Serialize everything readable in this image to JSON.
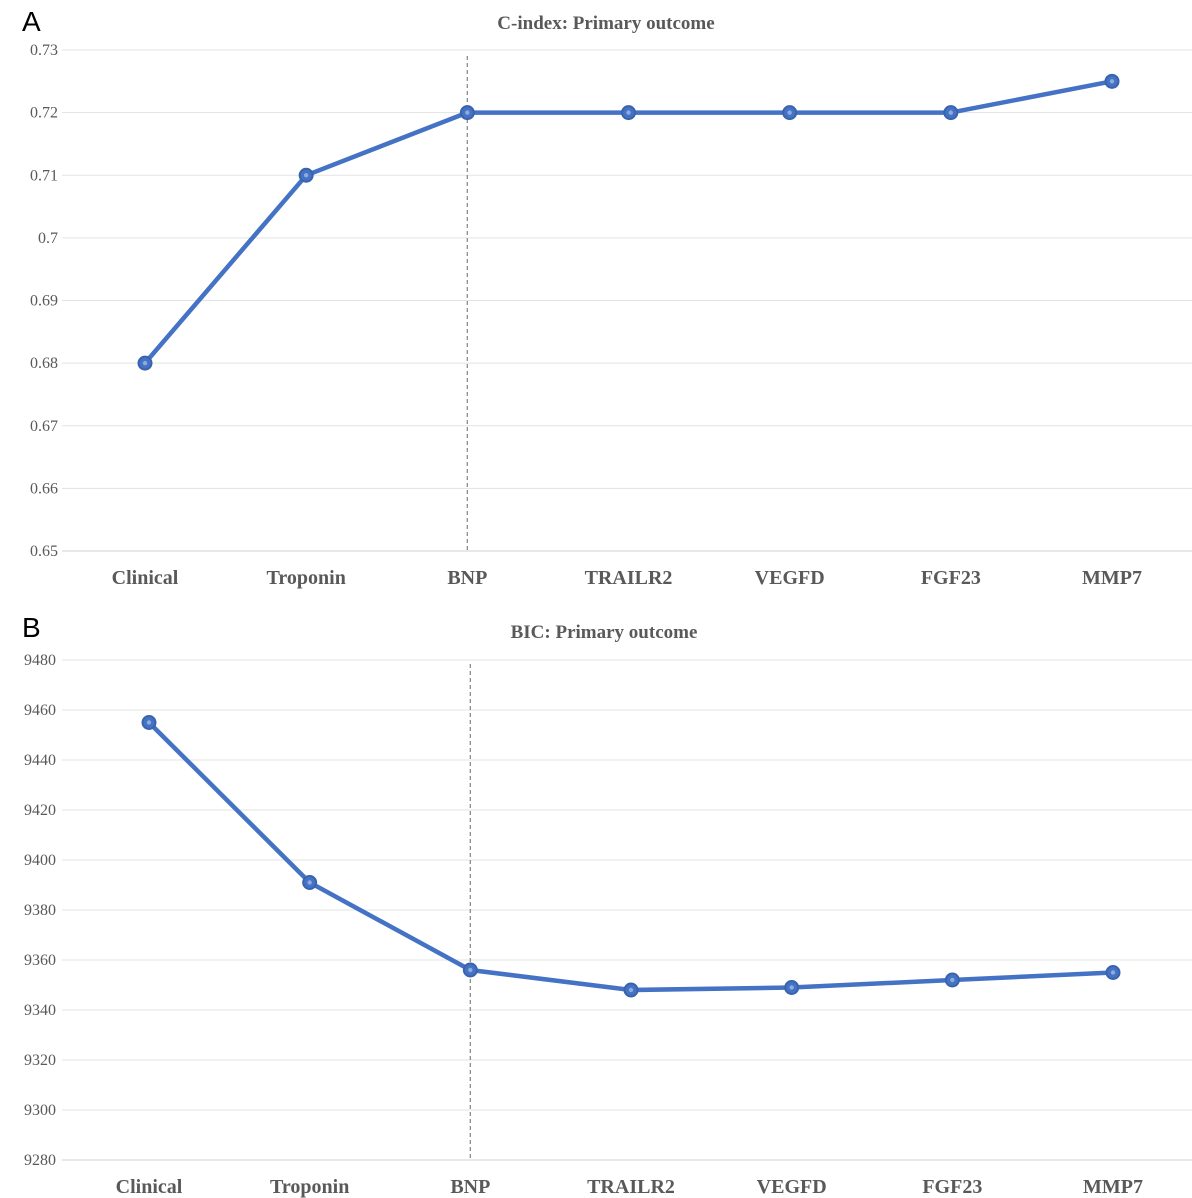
{
  "chart_data": [
    {
      "panel": "A",
      "type": "line",
      "title": "C-index: Primary outcome",
      "xlabel": "",
      "ylabel": "",
      "categories": [
        "Clinical",
        "Troponin",
        "BNP",
        "TRAILR2",
        "VEGFD",
        "FGF23",
        "MMP7"
      ],
      "values": [
        0.68,
        0.71,
        0.72,
        0.72,
        0.72,
        0.72,
        0.725
      ],
      "ylim": [
        0.65,
        0.73
      ],
      "yticks": [
        "0.73",
        "0.72",
        "0.71",
        "0.7",
        "0.69",
        "0.68",
        "0.67",
        "0.66",
        "0.65"
      ],
      "reference_line_category": "BNP",
      "grid": true,
      "color": "#4472c4"
    },
    {
      "panel": "B",
      "type": "line",
      "title": "BIC: Primary outcome",
      "xlabel": "",
      "ylabel": "",
      "categories": [
        "Clinical",
        "Troponin",
        "BNP",
        "TRAILR2",
        "VEGFD",
        "FGF23",
        "MMP7"
      ],
      "values": [
        9455,
        9391,
        9356,
        9348,
        9349,
        9352,
        9355
      ],
      "ylim": [
        9280,
        9480
      ],
      "yticks": [
        "9480",
        "9460",
        "9440",
        "9420",
        "9400",
        "9380",
        "9360",
        "9340",
        "9320",
        "9300",
        "9280"
      ],
      "reference_line_category": "BNP",
      "grid": true,
      "color": "#4472c4"
    }
  ]
}
